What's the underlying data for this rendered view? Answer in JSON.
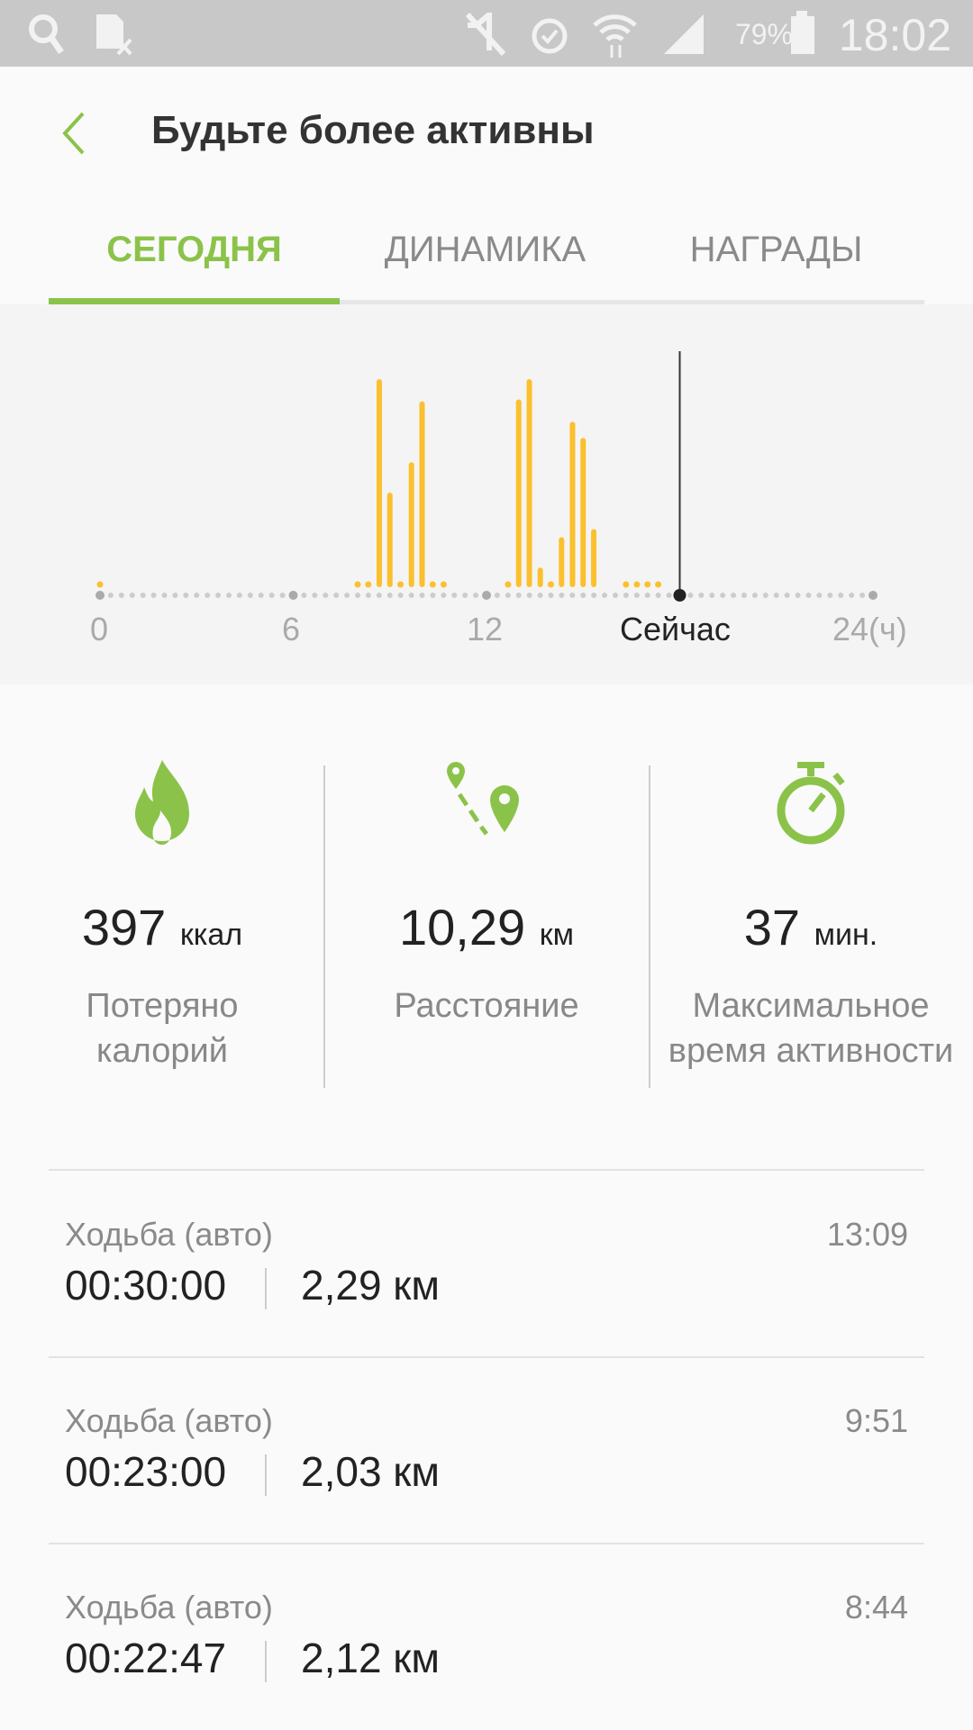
{
  "status_bar": {
    "battery": "79%",
    "time": "18:02",
    "icons": [
      "search-icon",
      "sim-off-icon",
      "mute-icon",
      "alarm-icon",
      "wifi-icon",
      "signal-icon",
      "battery-icon"
    ]
  },
  "header": {
    "title": "Будьте более активны",
    "back_icon": "chevron-left-icon"
  },
  "tabs": [
    {
      "label": "СЕГОДНЯ",
      "active": true
    },
    {
      "label": "ДИНАМИКА",
      "active": false
    },
    {
      "label": "НАГРАДЫ",
      "active": false
    }
  ],
  "colors": {
    "accent": "#8bc34a",
    "bars": "#fbc02d"
  },
  "chart_data": {
    "type": "bar",
    "x_unit": "ч",
    "tick_labels": [
      "0",
      "6",
      "12",
      "Сейчас",
      "24(ч)"
    ],
    "now_hour": 18.0,
    "xlim": [
      0,
      24
    ],
    "interval_minutes": 20,
    "bars": [
      {
        "hour": 0.0,
        "value": 1
      },
      {
        "hour": 8.0,
        "value": 1
      },
      {
        "hour": 8.33,
        "value": 1
      },
      {
        "hour": 8.67,
        "value": 100
      },
      {
        "hour": 9.0,
        "value": 44
      },
      {
        "hour": 9.33,
        "value": 1
      },
      {
        "hour": 9.67,
        "value": 59
      },
      {
        "hour": 10.0,
        "value": 89
      },
      {
        "hour": 10.33,
        "value": 1
      },
      {
        "hour": 10.67,
        "value": 1
      },
      {
        "hour": 12.67,
        "value": 1
      },
      {
        "hour": 13.0,
        "value": 90
      },
      {
        "hour": 13.33,
        "value": 100
      },
      {
        "hour": 13.67,
        "value": 7
      },
      {
        "hour": 14.0,
        "value": 2
      },
      {
        "hour": 14.33,
        "value": 22
      },
      {
        "hour": 14.67,
        "value": 79
      },
      {
        "hour": 15.0,
        "value": 71
      },
      {
        "hour": 15.33,
        "value": 26
      },
      {
        "hour": 16.33,
        "value": 1
      },
      {
        "hour": 16.67,
        "value": 1
      },
      {
        "hour": 17.0,
        "value": 1
      },
      {
        "hour": 17.33,
        "value": 1
      }
    ]
  },
  "stats": [
    {
      "icon": "flame-icon",
      "value": "397",
      "unit": "ккал",
      "label": "Потеряно калорий"
    },
    {
      "icon": "route-icon",
      "value": "10,29",
      "unit": "км",
      "label": "Расстояние"
    },
    {
      "icon": "stopwatch-icon",
      "value": "37",
      "unit": "мин.",
      "label": "Максимальное время активности"
    }
  ],
  "activities": [
    {
      "name": "Ходьба (авто)",
      "time": "13:09",
      "duration": "00:30:00",
      "distance": "2,29 км"
    },
    {
      "name": "Ходьба (авто)",
      "time": "9:51",
      "duration": "00:23:00",
      "distance": "2,03 км"
    },
    {
      "name": "Ходьба (авто)",
      "time": "8:44",
      "duration": "00:22:47",
      "distance": "2,12 км"
    }
  ]
}
